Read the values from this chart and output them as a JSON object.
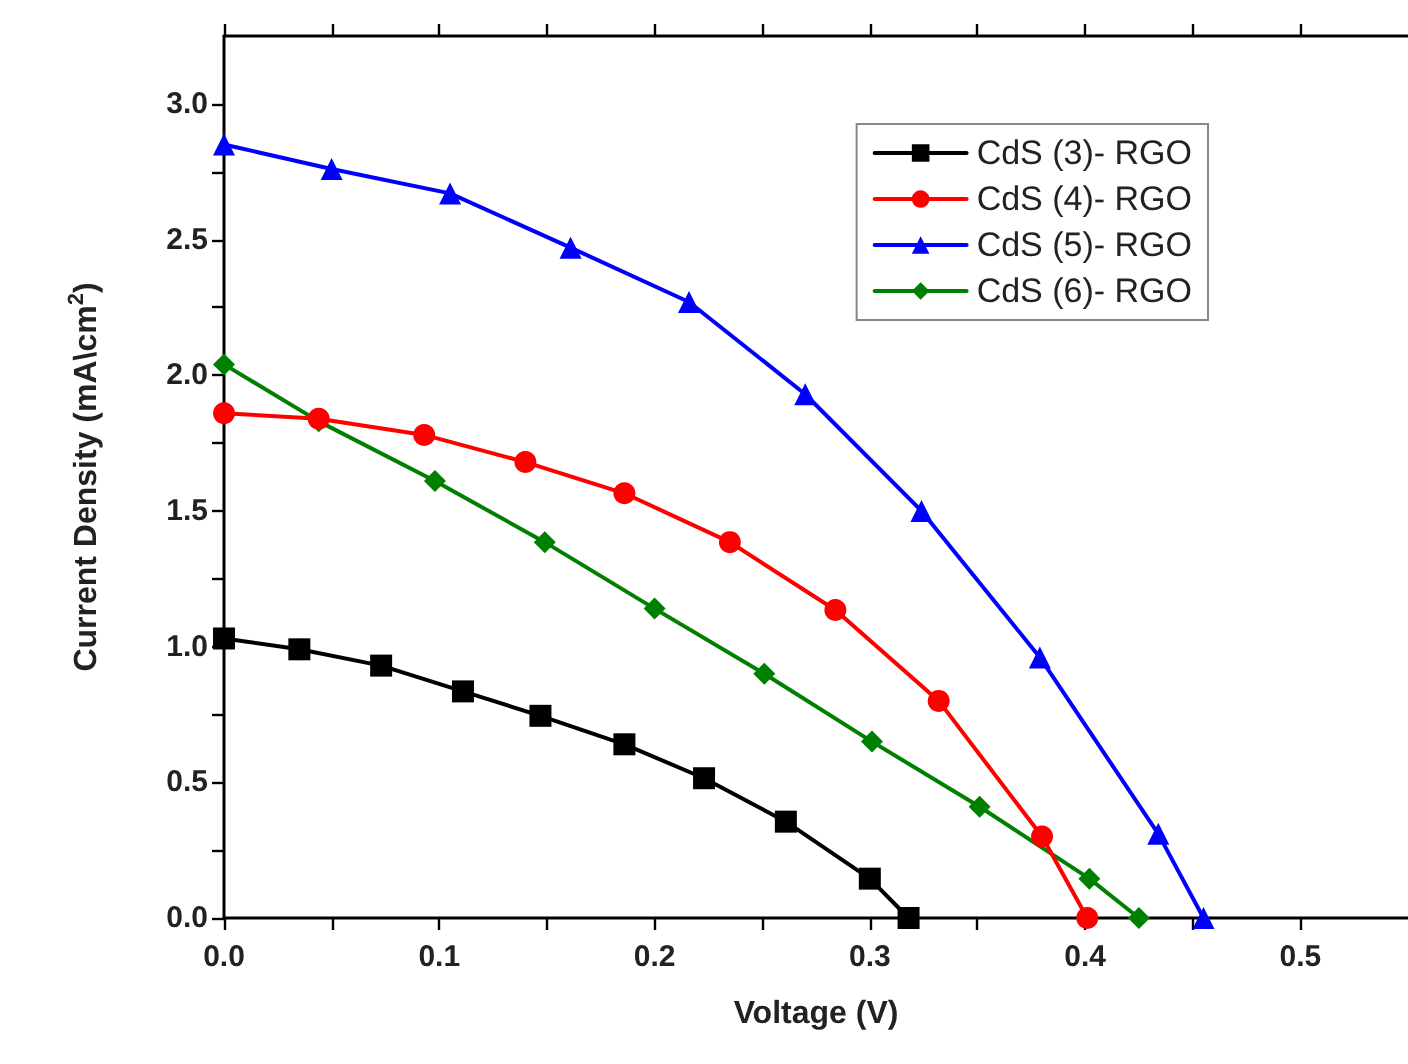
{
  "chart_data": {
    "type": "line",
    "xlabel": "Voltage (V)",
    "ylabel": "Current Density (mA\\cm$^{2}$)",
    "xlim": [
      0,
      0.55
    ],
    "xticks": [
      {
        "value": 0,
        "label": "0.0"
      },
      0.1,
      0.2,
      0.3,
      0.4,
      0.5
    ],
    "ylim": [
      0,
      3.25
    ],
    "yticks": [
      {
        "value": 0,
        "label": "0.0"
      },
      0.5,
      {
        "value": 1,
        "label": "1.0"
      },
      1.5,
      {
        "value": 2,
        "label": "2.0"
      },
      2.5,
      {
        "value": 3,
        "label": "3.0"
      }
    ],
    "grid": false,
    "legend": "top right",
    "line_style": "solid",
    "series": [
      {
        "name": "CdS (3)- RGO",
        "color": "#000000",
        "marker": "square",
        "x": [
          0,
          0.035,
          0.073,
          0.111,
          0.147,
          0.186,
          0.223,
          0.261,
          0.3,
          0.318
        ],
        "values": [
          1.03,
          0.99,
          0.93,
          0.835,
          0.745,
          0.64,
          0.515,
          0.355,
          0.145,
          0
        ]
      },
      {
        "name": "CdS (4)- RGO",
        "color": "#ff0000",
        "marker": "circle",
        "x": [
          0,
          0.044,
          0.093,
          0.14,
          0.186,
          0.235,
          0.284,
          0.332,
          0.38,
          0.401
        ],
        "values": [
          1.86,
          1.84,
          1.78,
          1.68,
          1.565,
          1.385,
          1.135,
          0.8,
          0.3,
          0
        ]
      },
      {
        "name": "CdS (5)- RGO",
        "color": "#0000ff",
        "marker": "triangle",
        "x": [
          0,
          0.05,
          0.105,
          0.161,
          0.216,
          0.27,
          0.324,
          0.379,
          0.434,
          0.455
        ],
        "values": [
          2.85,
          2.76,
          2.67,
          2.47,
          2.27,
          1.93,
          1.5,
          0.96,
          0.31,
          0
        ]
      },
      {
        "name": "CdS (6)- RGO",
        "color": "#008000",
        "marker": "diamond",
        "x": [
          0,
          0.044,
          0.098,
          0.149,
          0.2,
          0.251,
          0.301,
          0.351,
          0.402,
          0.425
        ],
        "values": [
          2.04,
          1.83,
          1.61,
          1.385,
          1.14,
          0.9,
          0.65,
          0.41,
          0.145,
          0
        ]
      }
    ]
  }
}
